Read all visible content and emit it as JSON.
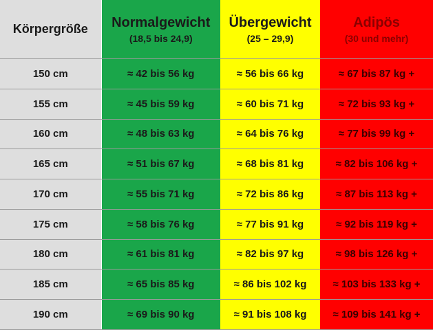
{
  "table": {
    "header": [
      {
        "title": "Körpergröße"
      },
      {
        "title": "Normalgewicht",
        "subtitle": "(18,5 bis 24,9)"
      },
      {
        "title": "Übergewicht",
        "subtitle": "(25 – 29,9)"
      },
      {
        "title": "Adipös",
        "subtitle": "(30 und mehr)"
      }
    ],
    "rows": [
      [
        "150 cm",
        "≈ 42 bis 56 kg",
        "≈ 56 bis 66 kg",
        "≈ 67 bis 87 kg +"
      ],
      [
        "155 cm",
        "≈ 45 bis 59 kg",
        "≈ 60 bis 71 kg",
        "≈ 72 bis 93 kg +"
      ],
      [
        "160 cm",
        "≈ 48 bis 63 kg",
        "≈ 64 bis 76 kg",
        "≈ 77 bis 99 kg +"
      ],
      [
        "165 cm",
        "≈ 51 bis 67 kg",
        "≈ 68 bis 81 kg",
        "≈ 82 bis 106 kg +"
      ],
      [
        "170 cm",
        "≈ 55 bis 71 kg",
        "≈ 72 bis 86 kg",
        "≈ 87 bis 113 kg +"
      ],
      [
        "175 cm",
        "≈ 58 bis 76 kg",
        "≈ 77 bis 91 kg",
        "≈ 92 bis 119 kg +"
      ],
      [
        "180 cm",
        "≈ 61 bis 81 kg",
        "≈ 82 bis 97 kg",
        "≈ 98 bis 126 kg +"
      ],
      [
        "185 cm",
        "≈ 65 bis 85 kg",
        "≈ 86 bis 102 kg",
        "≈ 103 bis 133 kg +"
      ],
      [
        "190 cm",
        "≈ 69 bis 90 kg",
        "≈ 91 bis 108 kg",
        "≈ 109 bis 141 kg +"
      ]
    ]
  }
}
